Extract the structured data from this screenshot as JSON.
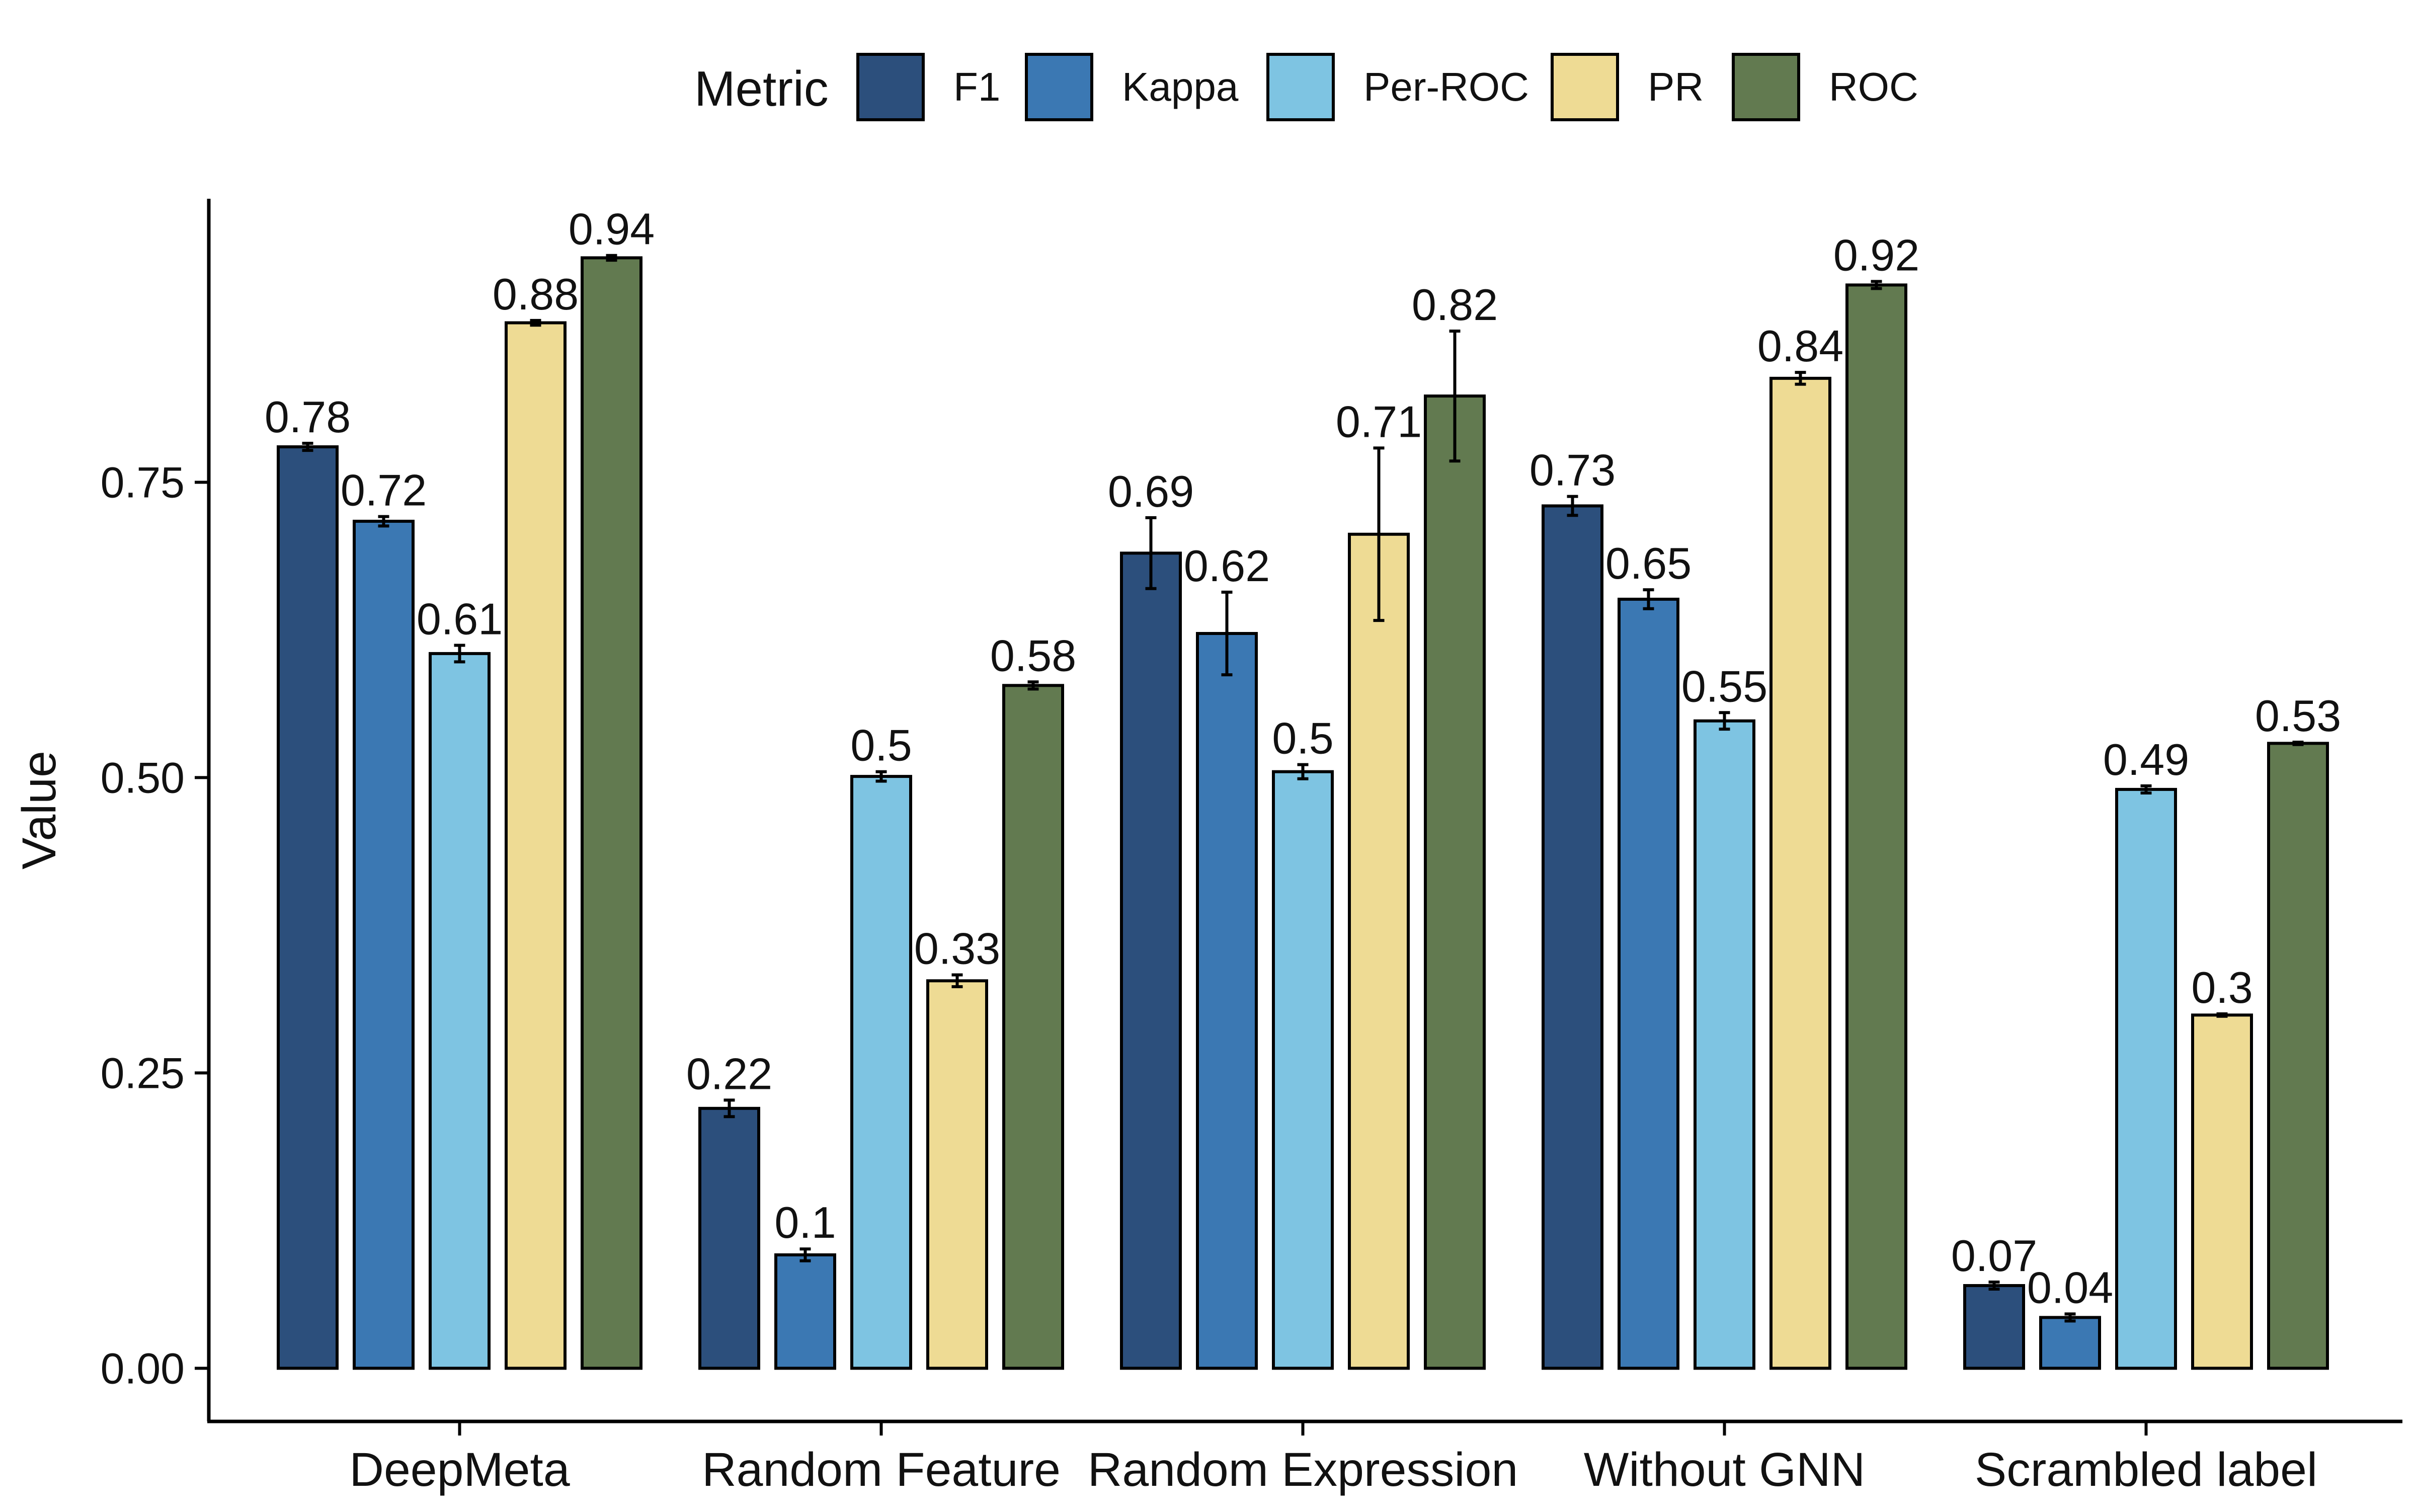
{
  "chart_data": {
    "type": "bar",
    "xlabel": "",
    "ylabel": "Value",
    "ylim": [
      -0.045,
      0.99
    ],
    "yticks": [
      0.0,
      0.25,
      0.5,
      0.75
    ],
    "ytick_labels": [
      "0.00",
      "0.25",
      "0.50",
      "0.75"
    ],
    "legend": {
      "title": "Metric",
      "position": "top"
    },
    "categories": [
      "DeepMeta",
      "Random Feature",
      "Random Expression",
      "Without GNN",
      "Scrambled label"
    ],
    "series": [
      {
        "name": "F1",
        "color": "#2c4f7c",
        "values": [
          0.78,
          0.22,
          0.69,
          0.73,
          0.07
        ],
        "labels": [
          "0.78",
          "0.22",
          "0.69",
          "0.73",
          "0.07"
        ],
        "errors": [
          0.003,
          0.007,
          0.03,
          0.008,
          0.003
        ]
      },
      {
        "name": "Kappa",
        "color": "#3b78b3",
        "values": [
          0.717,
          0.096,
          0.622,
          0.651,
          0.043
        ],
        "labels": [
          "0.72",
          "0.1",
          "0.62",
          "0.65",
          "0.04"
        ],
        "errors": [
          0.004,
          0.005,
          0.035,
          0.008,
          0.003
        ]
      },
      {
        "name": "Per-ROC",
        "color": "#7ec4e2",
        "values": [
          0.605,
          0.501,
          0.505,
          0.548,
          0.49
        ],
        "labels": [
          "0.61",
          "0.5",
          "0.5",
          "0.55",
          "0.49"
        ],
        "errors": [
          0.007,
          0.004,
          0.006,
          0.007,
          0.003
        ]
      },
      {
        "name": "PR",
        "color": "#eedb94",
        "values": [
          0.885,
          0.328,
          0.706,
          0.838,
          0.299
        ],
        "labels": [
          "0.88",
          "0.33",
          "0.71",
          "0.84",
          "0.3"
        ],
        "errors": [
          0.002,
          0.005,
          0.073,
          0.005,
          0.001
        ]
      },
      {
        "name": "ROC",
        "color": "#627a50",
        "values": [
          0.94,
          0.578,
          0.823,
          0.917,
          0.529
        ],
        "labels": [
          "0.94",
          "0.58",
          "0.82",
          "0.92",
          "0.53"
        ],
        "errors": [
          0.002,
          0.003,
          0.055,
          0.003,
          0.001
        ]
      }
    ]
  }
}
